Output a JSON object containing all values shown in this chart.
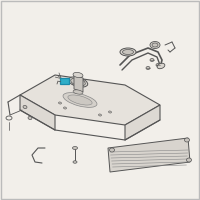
{
  "background_color": "#f2efea",
  "border_color": "#bbbbbb",
  "line_color": "#aaaaaa",
  "dark_line": "#555555",
  "mid_line": "#888888",
  "highlight_color": "#2eaec8",
  "highlight_border": "#1a8aaa",
  "tank_fill": "#e6e2dc",
  "tank_fill2": "#ddd9d3",
  "part_fill": "#d8d4ce",
  "part_fill2": "#c8c4be",
  "figsize": [
    2.0,
    2.0
  ],
  "dpi": 100
}
